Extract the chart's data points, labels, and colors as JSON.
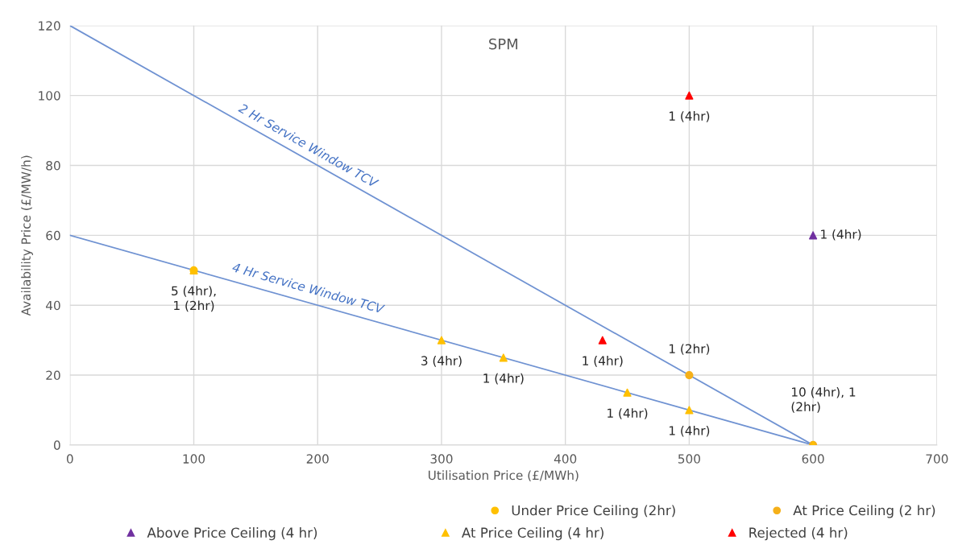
{
  "chart_data": {
    "type": "scatter",
    "title": "SPM",
    "xlabel": "Utilisation Price (£/MWh)",
    "ylabel": "Availability Price (£/MW/h)",
    "xlim": [
      0,
      700
    ],
    "xticks": [
      0,
      100,
      200,
      300,
      400,
      500,
      600,
      700
    ],
    "ylim": [
      0,
      120
    ],
    "yticks": [
      0,
      20,
      40,
      60,
      80,
      100,
      120
    ],
    "grid": true,
    "legend": "bottom",
    "series": [
      {
        "name": "2 Hr Service Window TCV",
        "type": "line",
        "color": "#6f92d2",
        "x": [
          0,
          600
        ],
        "values": [
          120,
          0
        ],
        "marker": "none"
      },
      {
        "name": "4 Hr Service Window TCV",
        "type": "line",
        "color": "#6f92d2",
        "x": [
          0,
          600
        ],
        "values": [
          60,
          0
        ],
        "marker": "none"
      },
      {
        "name": "Under Price Ceiling (2hr)",
        "color": "#ffc000",
        "x": [
          100
        ],
        "values": [
          50
        ],
        "marker": "circle"
      },
      {
        "name": "At Price Ceiling (2 hr)",
        "color": "#f5b01a",
        "x": [
          500,
          600
        ],
        "values": [
          20,
          0
        ],
        "marker": "circle"
      },
      {
        "name": "Above Price Ceiling (4 hr)",
        "color": "#7030a0",
        "x": [
          600
        ],
        "values": [
          60
        ],
        "marker": "triangle"
      },
      {
        "name": "At Price Ceiling (4 hr)",
        "color": "#ffc000",
        "x": [
          100,
          300,
          350,
          450,
          500,
          600
        ],
        "values": [
          50,
          30,
          25,
          15,
          10,
          0
        ],
        "marker": "triangle"
      },
      {
        "name": "Rejected (4 hr)",
        "color": "#ff0000",
        "x": [
          430,
          500
        ],
        "values": [
          30,
          100
        ],
        "marker": "triangle"
      }
    ],
    "annotations": [
      {
        "text": "1 (4hr)",
        "x": 500,
        "y": 100
      },
      {
        "text": "1 (4hr)",
        "x": 600,
        "y": 60
      },
      {
        "text": "5 (4hr),\n1 (2hr)",
        "x": 100,
        "y": 50
      },
      {
        "text": "3 (4hr)",
        "x": 300,
        "y": 30
      },
      {
        "text": "1 (4hr)",
        "x": 350,
        "y": 25
      },
      {
        "text": "1 (4hr)",
        "x": 430,
        "y": 30
      },
      {
        "text": "1 (2hr)",
        "x": 500,
        "y": 20
      },
      {
        "text": "1 (4hr)",
        "x": 450,
        "y": 15
      },
      {
        "text": "1 (4hr)",
        "x": 500,
        "y": 10
      },
      {
        "text": "10 (4hr), 1\n(2hr)",
        "x": 600,
        "y": 0
      }
    ]
  }
}
